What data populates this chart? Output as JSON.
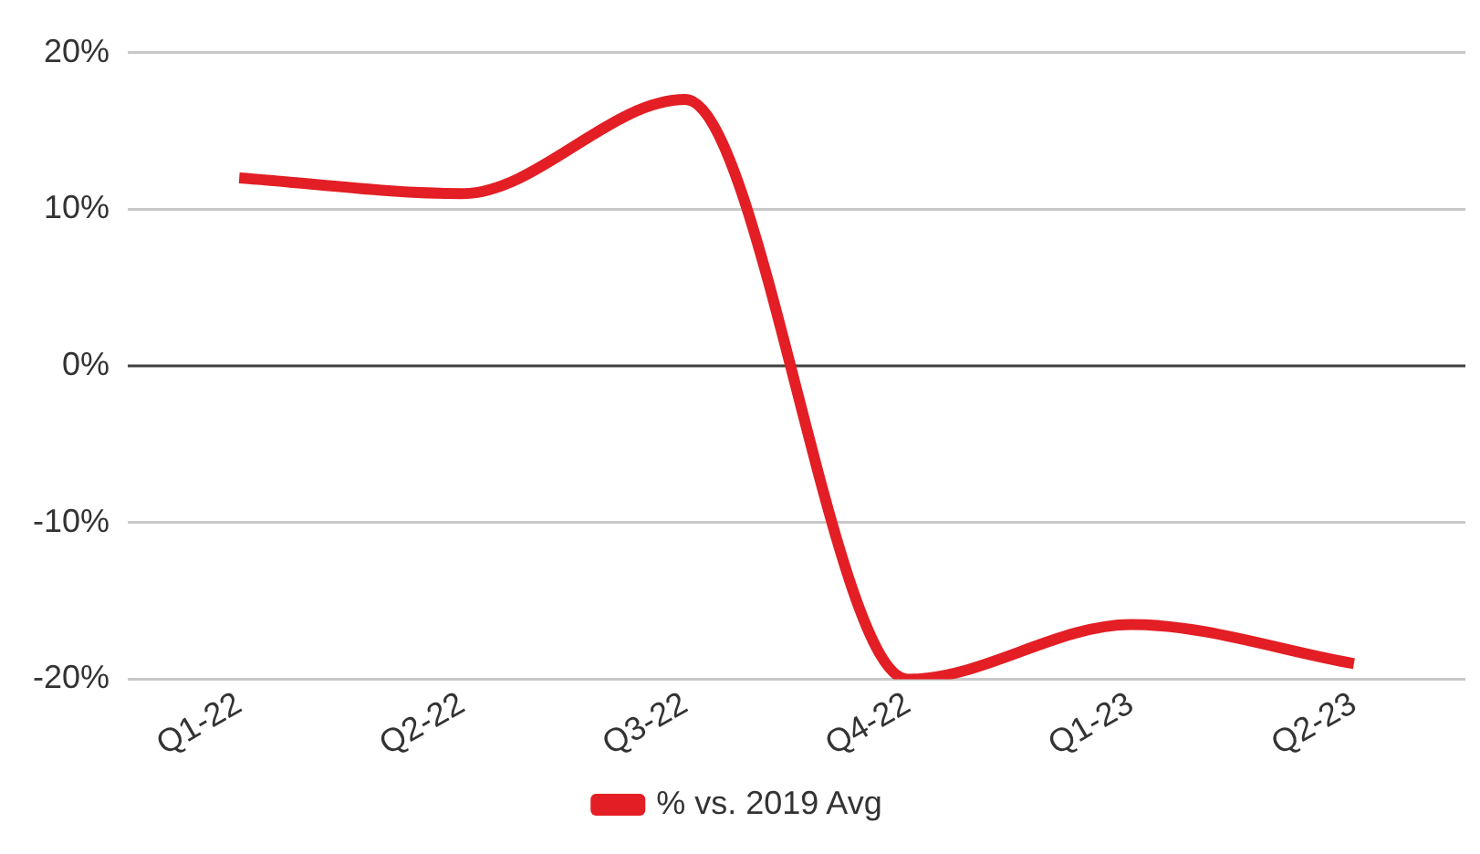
{
  "chart_data": {
    "type": "line",
    "categories": [
      "Q1-22",
      "Q2-22",
      "Q3-22",
      "Q4-22",
      "Q1-23",
      "Q2-23"
    ],
    "series": [
      {
        "name": "% vs. 2019 Avg",
        "color": "#e31e24",
        "values": [
          12,
          11,
          17,
          -20,
          -16.5,
          -19
        ]
      }
    ],
    "ylim": [
      -20,
      20
    ],
    "yticks": [
      {
        "value": -20,
        "label": "-20%"
      },
      {
        "value": -10,
        "label": "-10%"
      },
      {
        "value": 0,
        "label": "0%"
      },
      {
        "value": 10,
        "label": "10%"
      },
      {
        "value": 20,
        "label": "20%"
      }
    ],
    "ref_lines": [
      {
        "axis": "y",
        "value": 0,
        "color": "#404040"
      }
    ],
    "grid": "y",
    "legend": "bottom",
    "marker": "none",
    "line_style": "solid"
  }
}
